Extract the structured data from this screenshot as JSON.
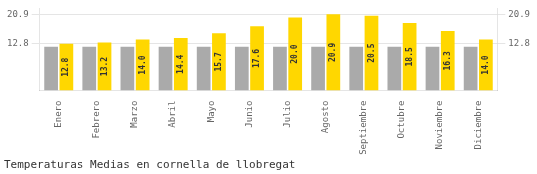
{
  "chart_data": {
    "type": "bar",
    "title": "Temperaturas Medias en cornella de llobregat",
    "categories": [
      "Enero",
      "Febrero",
      "Marzo",
      "Abril",
      "Mayo",
      "Junio",
      "Julio",
      "Agosto",
      "Septiembre",
      "Octubre",
      "Noviembre",
      "Diciembre"
    ],
    "series": [
      {
        "color": "#AAAAAA",
        "values": [
          12.0,
          12.0,
          12.0,
          12.0,
          12.0,
          12.0,
          12.0,
          12.0,
          12.0,
          12.0,
          12.0,
          12.0
        ]
      },
      {
        "color": "#FFD700",
        "values": [
          12.8,
          13.2,
          14.0,
          14.4,
          15.7,
          17.6,
          20.0,
          20.9,
          20.5,
          18.5,
          16.3,
          14.0
        ],
        "data_labels": true,
        "value_labels": [
          "12.8",
          "13.2",
          "14.0",
          "14.4",
          "15.7",
          "17.6",
          "20.0",
          "20.9",
          "20.5",
          "18.5",
          "16.3",
          "14.0"
        ]
      }
    ],
    "ylim": [
      0,
      22.5
    ],
    "yticks": [
      12.8,
      20.9
    ],
    "y2lim": [
      0,
      22.5
    ],
    "y2ticks": [
      12.8,
      20.9
    ],
    "grid": true
  }
}
